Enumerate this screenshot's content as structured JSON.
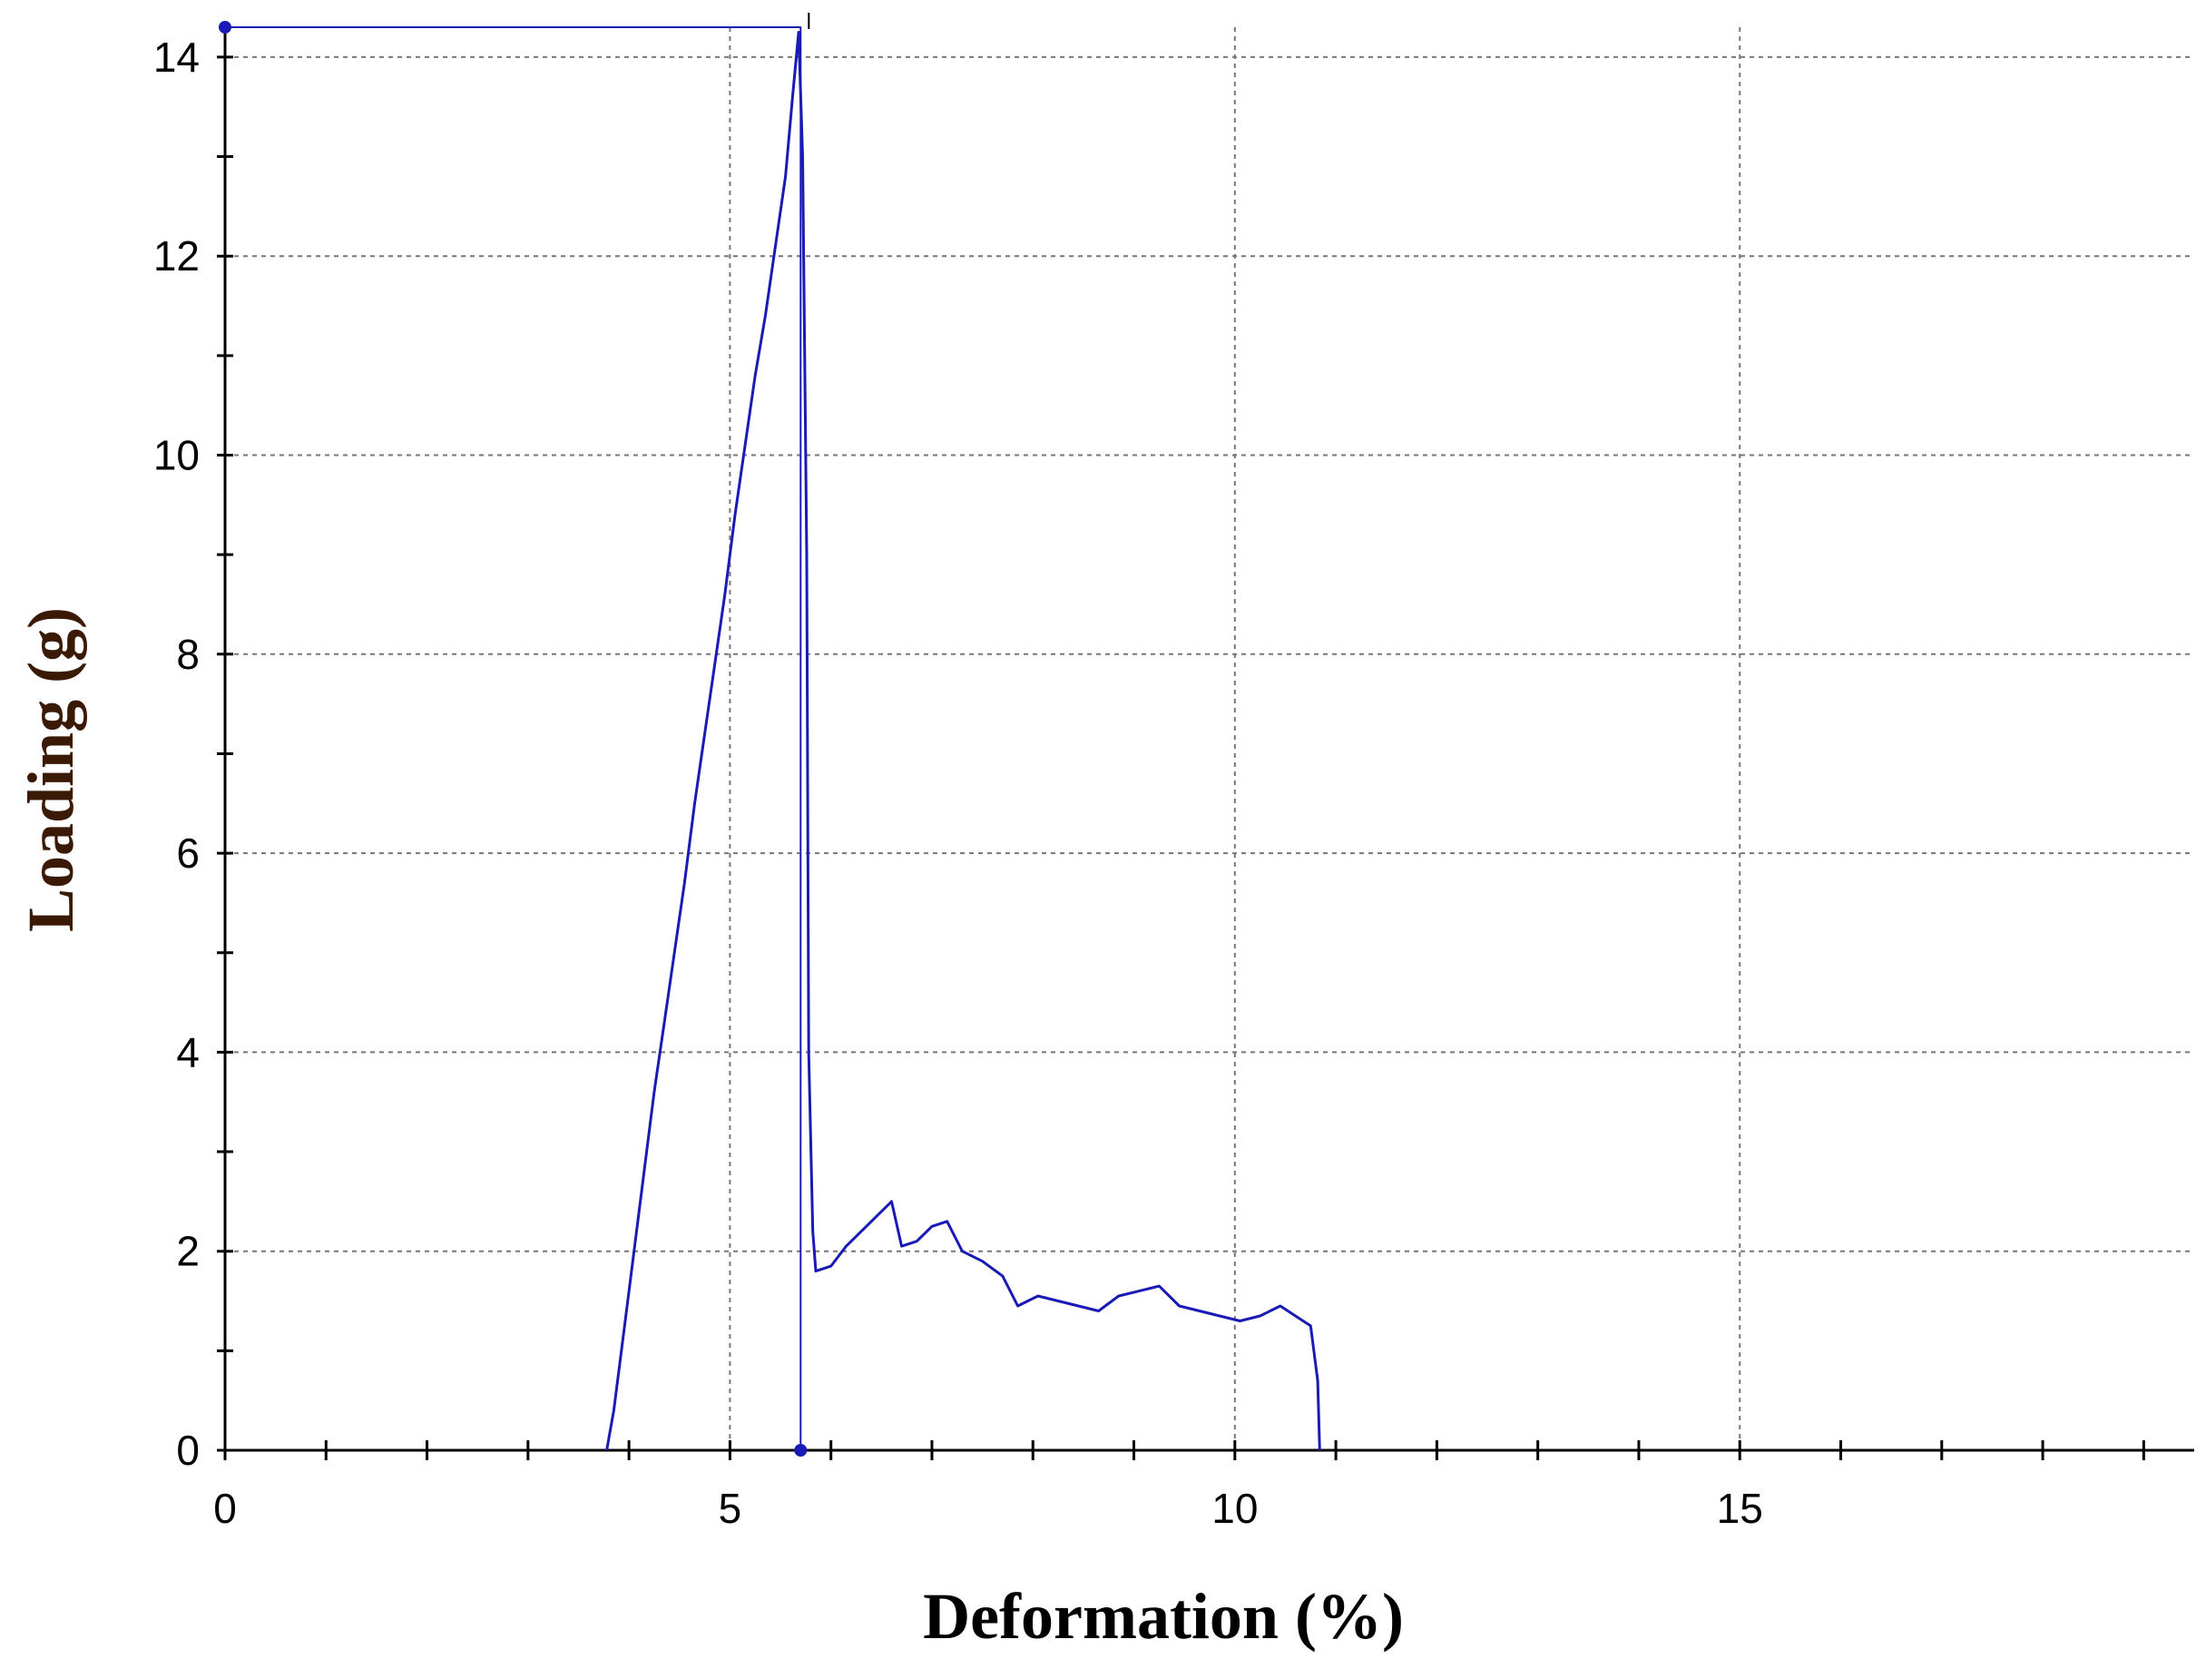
{
  "chart_data": {
    "type": "line",
    "title": "",
    "xlabel": "Deformation (%)",
    "ylabel": "Loading (g)",
    "xlim": [
      0,
      19.5
    ],
    "ylim": [
      0,
      14.3
    ],
    "x_ticks": [
      0,
      5,
      10,
      15
    ],
    "y_ticks": [
      0,
      2,
      4,
      6,
      8,
      10,
      12,
      14
    ],
    "x_minor_step": 1,
    "y_minor_step": 1,
    "grid": true,
    "grid_x": [
      5,
      10,
      15
    ],
    "grid_y": [
      2,
      4,
      6,
      8,
      10,
      12,
      14
    ],
    "colors": {
      "series": "#1a1ab5",
      "axis": "#000000",
      "grid": "#777777",
      "xlabel": "#000000",
      "ylabel": "#3a1a05"
    },
    "peak_marker": {
      "x": 5.7,
      "y": 14.3
    },
    "series": [
      {
        "points": [
          [
            3.78,
            0.0
          ],
          [
            3.85,
            0.4
          ],
          [
            3.95,
            1.2
          ],
          [
            4.05,
            2.0
          ],
          [
            4.15,
            2.8
          ],
          [
            4.25,
            3.6
          ],
          [
            4.35,
            4.3
          ],
          [
            4.45,
            5.0
          ],
          [
            4.55,
            5.7
          ],
          [
            4.65,
            6.5
          ],
          [
            4.75,
            7.2
          ],
          [
            4.85,
            7.9
          ],
          [
            4.95,
            8.6
          ],
          [
            5.05,
            9.4
          ],
          [
            5.15,
            10.1
          ],
          [
            5.25,
            10.8
          ],
          [
            5.35,
            11.4
          ],
          [
            5.45,
            12.1
          ],
          [
            5.55,
            12.8
          ],
          [
            5.62,
            13.6
          ],
          [
            5.68,
            14.25
          ],
          [
            5.72,
            13.0
          ],
          [
            5.76,
            9.0
          ],
          [
            5.78,
            4.0
          ],
          [
            5.82,
            2.2
          ],
          [
            5.85,
            1.8
          ],
          [
            6.0,
            1.85
          ],
          [
            6.15,
            2.05
          ],
          [
            6.3,
            2.2
          ],
          [
            6.45,
            2.35
          ],
          [
            6.6,
            2.5
          ],
          [
            6.7,
            2.05
          ],
          [
            6.85,
            2.1
          ],
          [
            7.0,
            2.25
          ],
          [
            7.15,
            2.3
          ],
          [
            7.3,
            2.0
          ],
          [
            7.5,
            1.9
          ],
          [
            7.7,
            1.75
          ],
          [
            7.85,
            1.45
          ],
          [
            8.05,
            1.55
          ],
          [
            8.25,
            1.5
          ],
          [
            8.45,
            1.45
          ],
          [
            8.65,
            1.4
          ],
          [
            8.85,
            1.55
          ],
          [
            9.05,
            1.6
          ],
          [
            9.25,
            1.65
          ],
          [
            9.45,
            1.45
          ],
          [
            9.65,
            1.4
          ],
          [
            9.85,
            1.35
          ],
          [
            10.05,
            1.3
          ],
          [
            10.25,
            1.35
          ],
          [
            10.45,
            1.45
          ],
          [
            10.6,
            1.35
          ],
          [
            10.75,
            1.25
          ],
          [
            10.82,
            0.7
          ],
          [
            10.84,
            0.0
          ]
        ]
      },
      {
        "points": [
          [
            0,
            14.3
          ],
          [
            5.7,
            14.3
          ],
          [
            5.7,
            0
          ]
        ]
      }
    ]
  }
}
